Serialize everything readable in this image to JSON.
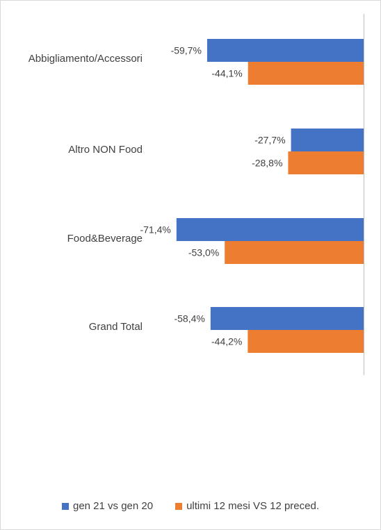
{
  "chart_data": {
    "type": "bar",
    "orientation": "horizontal",
    "categories": [
      "Abbigliamento/Accessori",
      "Altro NON Food",
      "Food&Beverage",
      "Grand Total"
    ],
    "series": [
      {
        "name": "gen 21 vs gen 20",
        "color": "#4472c4",
        "values": [
          -59.7,
          -27.7,
          -71.4,
          -58.4
        ],
        "labels": [
          "-59,7%",
          "-27,7%",
          "-71,4%",
          "-58,4%"
        ]
      },
      {
        "name": "ultimi 12 mesi VS 12 preced.",
        "color": "#ed7d31",
        "values": [
          -44.1,
          -28.8,
          -53.0,
          -44.2
        ],
        "labels": [
          "-44,1%",
          "-28,8%",
          "-53,0%",
          "-44,2%"
        ]
      }
    ],
    "xlim": [
      -80,
      0
    ],
    "grid": false,
    "legend_position": "bottom"
  }
}
